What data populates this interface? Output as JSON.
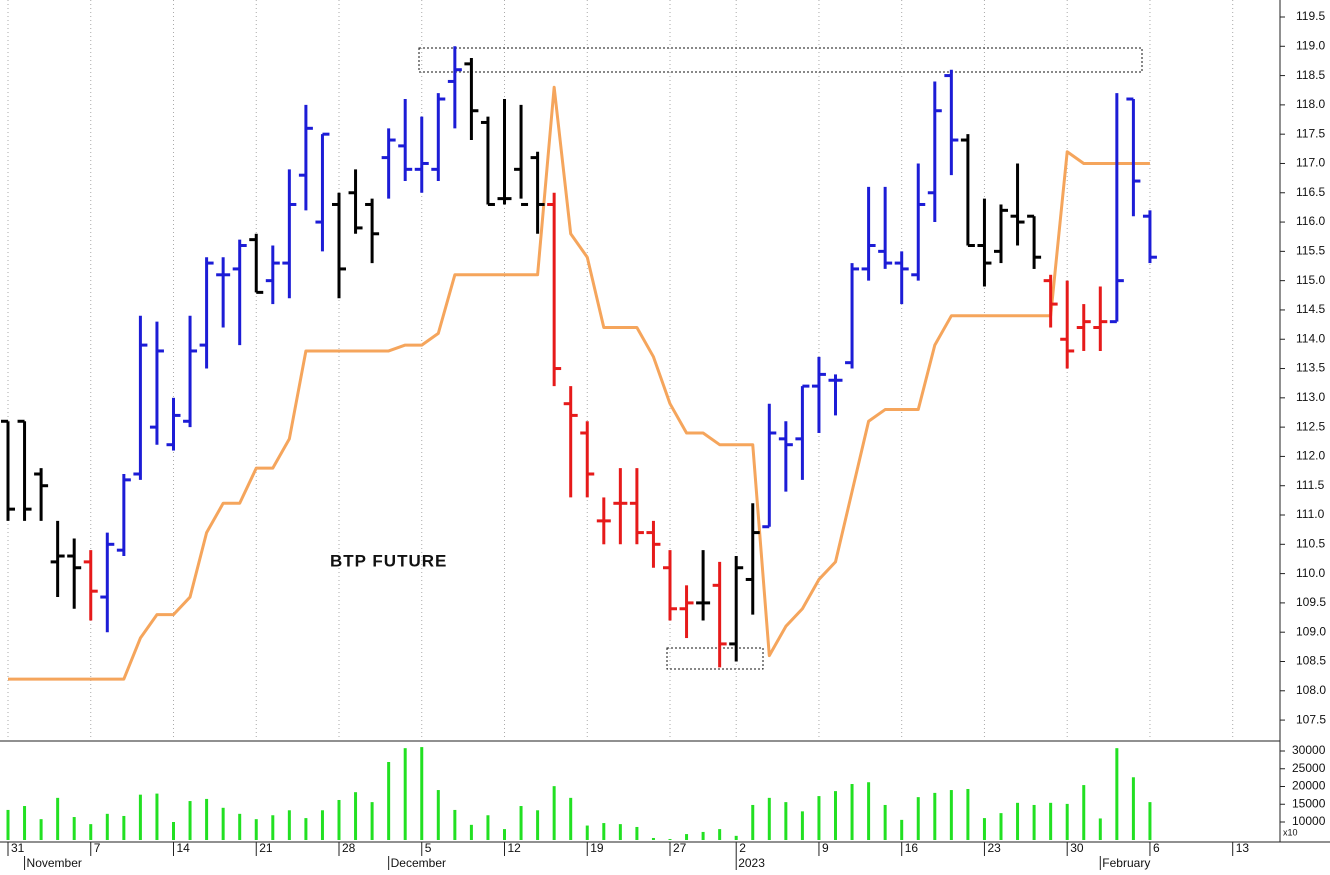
{
  "chart_data": [
    {
      "type": "ohlc",
      "annotation": "BTP FUTURE",
      "categories": [
        "31",
        null,
        null,
        null,
        null,
        "7",
        null,
        null,
        null,
        null,
        "14",
        null,
        null,
        null,
        null,
        "21",
        null,
        null,
        null,
        null,
        "28",
        null,
        null,
        null,
        null,
        "5",
        null,
        null,
        null,
        null,
        "12",
        null,
        null,
        null,
        null,
        "19",
        null,
        null,
        null,
        null,
        "27",
        null,
        null,
        null,
        "2",
        null,
        null,
        null,
        null,
        "9",
        null,
        null,
        null,
        null,
        "16",
        null,
        null,
        null,
        null,
        "23",
        null,
        null,
        null,
        null,
        "30",
        null,
        null,
        null,
        null,
        "6",
        null,
        null,
        null,
        null,
        "13",
        null,
        null
      ],
      "months": [
        {
          "label": "November",
          "index": 1
        },
        {
          "label": "December",
          "index": 23
        },
        {
          "label": "2023",
          "index": 44
        },
        {
          "label": "February",
          "index": 66
        }
      ],
      "open": [
        112.6,
        112.6,
        111.7,
        110.2,
        110.3,
        110.2,
        109.6,
        110.4,
        111.7,
        112.5,
        112.2,
        112.6,
        113.9,
        115.1,
        115.2,
        115.7,
        115.0,
        115.3,
        116.8,
        116.0,
        116.3,
        116.5,
        116.3,
        117.1,
        117.3,
        116.9,
        116.9,
        118.4,
        118.7,
        117.7,
        116.4,
        116.9,
        117.1,
        116.3,
        112.9,
        112.4,
        110.9,
        111.2,
        111.2,
        110.7,
        110.1,
        109.4,
        109.5,
        109.8,
        108.8,
        109.9,
        110.8,
        112.3,
        112.3,
        113.2,
        113.3,
        113.6,
        115.2,
        115.5,
        115.3,
        115.1,
        116.5,
        118.5,
        117.4,
        115.6,
        115.5,
        116.1,
        116.1,
        115.0,
        114.0,
        114.2,
        114.2,
        114.3,
        118.1,
        116.1,
        null,
        null,
        null,
        null,
        null,
        null,
        null
      ],
      "high": [
        112.6,
        112.6,
        111.8,
        110.9,
        110.6,
        110.4,
        110.7,
        111.7,
        114.4,
        114.3,
        113.0,
        114.4,
        115.4,
        115.4,
        115.7,
        115.8,
        115.6,
        116.9,
        118.0,
        117.5,
        116.5,
        116.9,
        116.4,
        117.6,
        118.1,
        117.8,
        118.2,
        119.0,
        118.8,
        117.8,
        118.1,
        118.0,
        117.2,
        116.5,
        113.2,
        112.6,
        111.3,
        111.8,
        111.8,
        110.9,
        110.4,
        109.8,
        110.4,
        110.2,
        110.3,
        111.2,
        112.9,
        112.6,
        113.2,
        113.7,
        113.4,
        115.3,
        116.6,
        116.6,
        115.5,
        117.0,
        118.4,
        118.6,
        117.5,
        116.4,
        116.3,
        117.0,
        116.1,
        115.1,
        115.0,
        114.6,
        114.9,
        118.2,
        118.1,
        116.2,
        null,
        null,
        null,
        null,
        null,
        null,
        null
      ],
      "low": [
        110.9,
        110.9,
        110.9,
        109.6,
        109.4,
        109.2,
        109.0,
        110.3,
        111.6,
        112.2,
        112.1,
        112.5,
        113.5,
        114.2,
        113.9,
        114.8,
        114.6,
        114.7,
        116.2,
        115.5,
        114.7,
        115.8,
        115.3,
        116.4,
        116.7,
        116.5,
        116.7,
        117.6,
        117.4,
        116.3,
        116.3,
        116.4,
        115.8,
        113.2,
        111.3,
        111.3,
        110.5,
        110.5,
        110.5,
        110.1,
        109.2,
        108.9,
        109.2,
        108.4,
        108.5,
        109.3,
        110.8,
        111.4,
        111.6,
        112.4,
        112.7,
        113.5,
        115.0,
        115.2,
        114.6,
        115.0,
        116.0,
        116.8,
        115.6,
        114.9,
        115.3,
        115.6,
        115.2,
        114.2,
        113.5,
        113.8,
        113.8,
        114.3,
        116.1,
        115.3,
        null,
        null,
        null,
        null,
        null,
        null,
        null
      ],
      "close": [
        111.1,
        111.1,
        111.5,
        110.3,
        110.1,
        109.7,
        110.5,
        111.6,
        113.9,
        113.8,
        112.7,
        113.8,
        115.3,
        115.1,
        115.6,
        114.8,
        115.3,
        116.3,
        117.6,
        117.5,
        115.2,
        115.9,
        115.8,
        117.4,
        116.9,
        117.0,
        118.1,
        118.6,
        117.9,
        116.3,
        116.4,
        116.3,
        116.3,
        113.5,
        112.7,
        111.7,
        110.9,
        111.2,
        110.7,
        110.5,
        109.4,
        109.5,
        109.5,
        108.8,
        110.1,
        110.7,
        112.4,
        112.2,
        113.2,
        113.4,
        113.3,
        115.2,
        115.6,
        115.3,
        115.2,
        116.3,
        117.9,
        117.4,
        115.6,
        115.3,
        116.2,
        116.0,
        115.4,
        114.6,
        113.8,
        114.3,
        114.3,
        115.0,
        116.7,
        115.4,
        null,
        null,
        null,
        null,
        null,
        null,
        null
      ],
      "palette": {
        "blue": "#1c1cd6",
        "black": "#000000",
        "red": "#e61a1a"
      },
      "bar_colors": [
        "black",
        "black",
        "black",
        "black",
        "black",
        "red",
        "blue",
        "blue",
        "blue",
        "blue",
        "blue",
        "blue",
        "blue",
        "blue",
        "blue",
        "black",
        "blue",
        "blue",
        "blue",
        "blue",
        "black",
        "black",
        "black",
        "blue",
        "blue",
        "blue",
        "blue",
        "blue",
        "black",
        "black",
        "black",
        "black",
        "black",
        "red",
        "red",
        "red",
        "red",
        "red",
        "red",
        "red",
        "red",
        "red",
        "black",
        "red",
        "black",
        "black",
        "blue",
        "blue",
        "blue",
        "blue",
        "blue",
        "blue",
        "blue",
        "blue",
        "blue",
        "blue",
        "blue",
        "blue",
        "black",
        "black",
        "black",
        "black",
        "black",
        "red",
        "red",
        "red",
        "red",
        "blue",
        "blue",
        "blue",
        null,
        null,
        null,
        null,
        null,
        null,
        null
      ],
      "stop_line": {
        "color": "#f5a55c",
        "values": [
          108.2,
          108.2,
          108.2,
          108.2,
          108.2,
          108.2,
          108.2,
          108.2,
          108.9,
          109.3,
          109.3,
          109.6,
          110.7,
          111.2,
          111.2,
          111.8,
          111.8,
          112.3,
          113.8,
          113.8,
          113.8,
          113.8,
          113.8,
          113.8,
          113.9,
          113.9,
          114.1,
          115.1,
          115.1,
          115.1,
          115.1,
          115.1,
          115.1,
          118.3,
          115.8,
          115.4,
          114.2,
          114.2,
          114.2,
          113.7,
          112.9,
          112.4,
          112.4,
          112.2,
          112.2,
          112.2,
          108.6,
          109.1,
          109.4,
          109.9,
          110.2,
          111.4,
          112.6,
          112.8,
          112.8,
          112.8,
          113.9,
          114.4,
          114.4,
          114.4,
          114.4,
          114.4,
          114.4,
          114.4,
          117.2,
          117.0,
          117.0,
          117.0,
          117.0,
          117.0,
          null,
          null,
          null,
          null,
          null,
          null,
          null
        ]
      },
      "ylim": [
        107.16,
        119.79
      ],
      "yticks": [
        107.5,
        {
          "value": 108,
          "label": "108.0"
        },
        108.5,
        {
          "value": 109,
          "label": "109.0"
        },
        109.5,
        {
          "value": 110,
          "label": "110.0"
        },
        110.5,
        {
          "value": 111,
          "label": "111.0"
        },
        111.5,
        {
          "value": 112,
          "label": "112.0"
        },
        112.5,
        {
          "value": 113,
          "label": "113.0"
        },
        113.5,
        {
          "value": 114,
          "label": "114.0"
        },
        114.5,
        {
          "value": 115,
          "label": "115.0"
        },
        115.5,
        {
          "value": 116,
          "label": "116.0"
        },
        116.5,
        {
          "value": 117,
          "label": "117.0"
        },
        117.5,
        {
          "value": 118,
          "label": "118.0"
        },
        118.5,
        {
          "value": 119,
          "label": "119.0"
        },
        119.5
      ],
      "grid": true
    },
    {
      "type": "volume",
      "values": [
        13400,
        14500,
        10800,
        16800,
        11400,
        9400,
        12300,
        11700,
        17700,
        18000,
        10000,
        15900,
        16500,
        14000,
        12300,
        10800,
        11900,
        13300,
        11100,
        13300,
        16200,
        18400,
        15600,
        26900,
        30800,
        31100,
        19000,
        13400,
        9200,
        11900,
        8000,
        14500,
        13300,
        20100,
        16800,
        9000,
        9700,
        9400,
        8600,
        5500,
        5200,
        6600,
        7200,
        8000,
        6100,
        14800,
        16800,
        15600,
        13000,
        17300,
        18700,
        20700,
        21200,
        14800,
        10600,
        17000,
        18200,
        19000,
        19300,
        11100,
        12500,
        15400,
        14800,
        15400,
        15100,
        20400,
        11000,
        30800,
        22600,
        15600,
        null,
        null,
        null,
        null,
        null,
        null,
        null
      ],
      "color": "#22e022",
      "unit": "x10",
      "ylim": [
        4930,
        32535
      ],
      "yticks": [
        10000,
        15000,
        20000,
        25000,
        30000
      ]
    }
  ]
}
